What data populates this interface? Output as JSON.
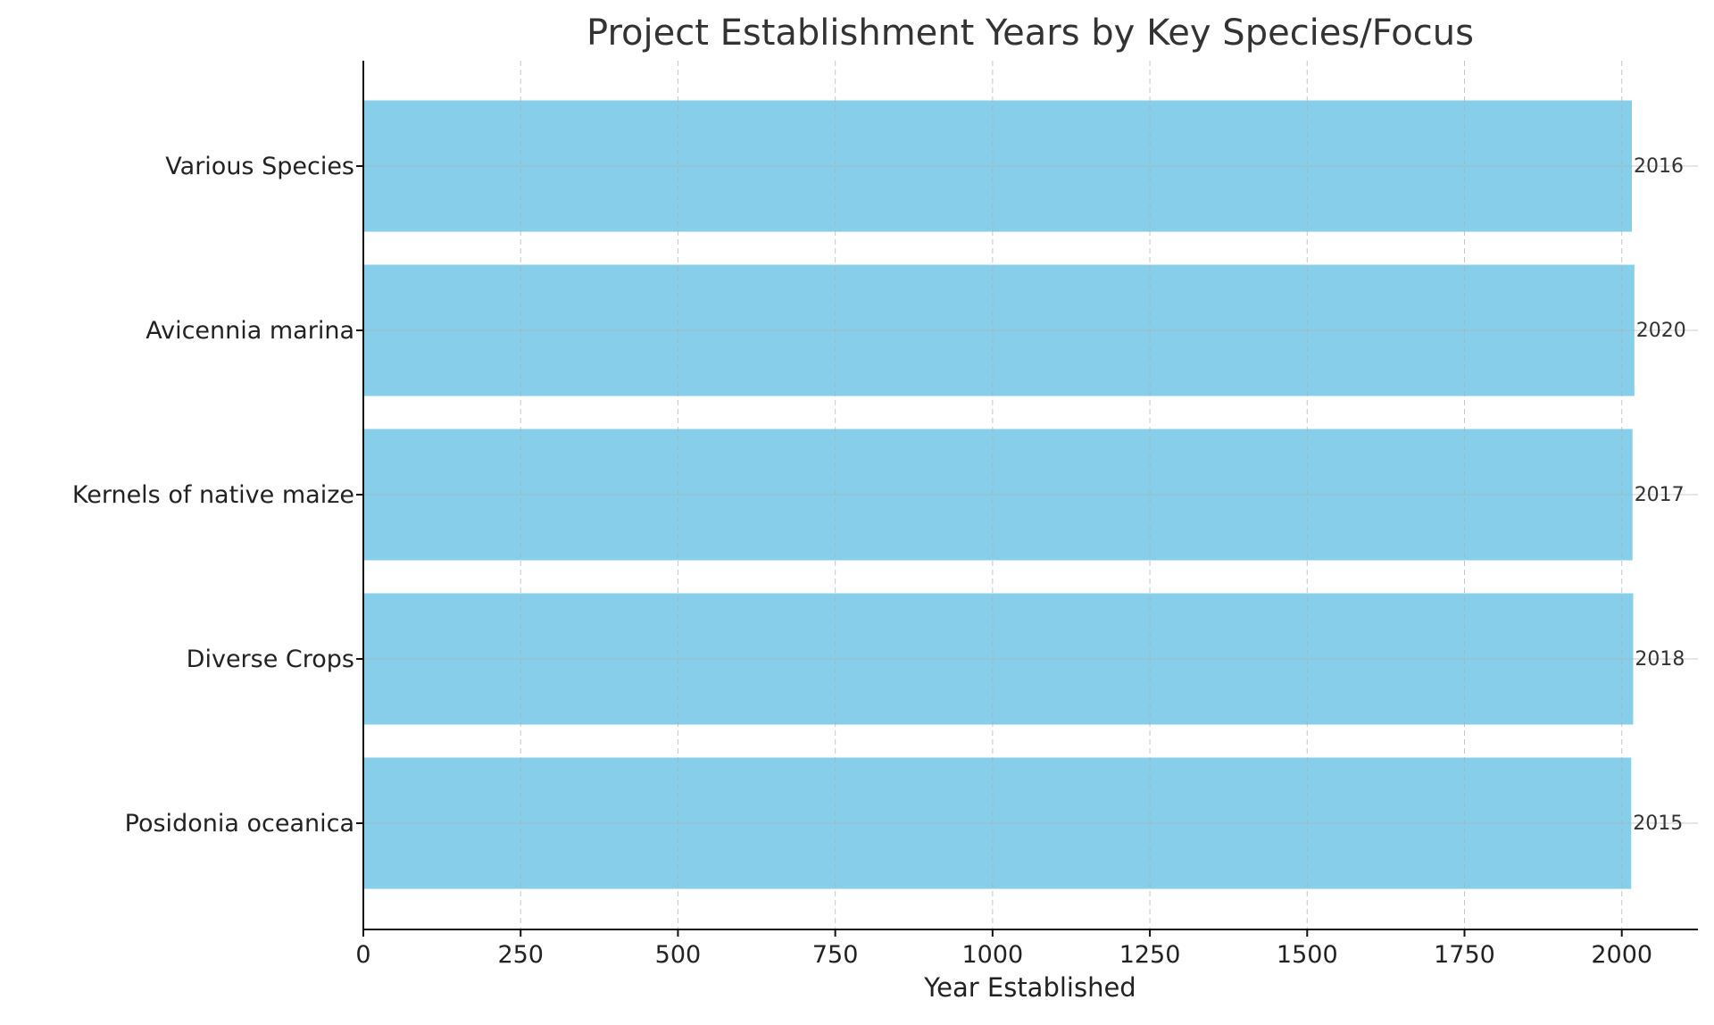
{
  "chart_data": {
    "type": "bar",
    "orientation": "horizontal",
    "title": "Project Establishment Years by Key Species/Focus",
    "xlabel": "Year Established",
    "ylabel": "",
    "categories": [
      "Posidonia oceanica",
      "Diverse Crops",
      "Kernels of native maize",
      "Avicennia marina",
      "Various Species"
    ],
    "values": [
      2015,
      2018,
      2017,
      2020,
      2016
    ],
    "data_labels": [
      "2015",
      "2018",
      "2017",
      "2020",
      "2016"
    ],
    "xlim": [
      0,
      2121
    ],
    "xticks": [
      0,
      250,
      500,
      750,
      1000,
      1250,
      1500,
      1750,
      2000
    ],
    "xtick_labels": [
      "0",
      "250",
      "500",
      "750",
      "1000",
      "1250",
      "1500",
      "1750",
      "2000"
    ],
    "grid": "x, dashed",
    "bar_color": "#87CEEB"
  }
}
